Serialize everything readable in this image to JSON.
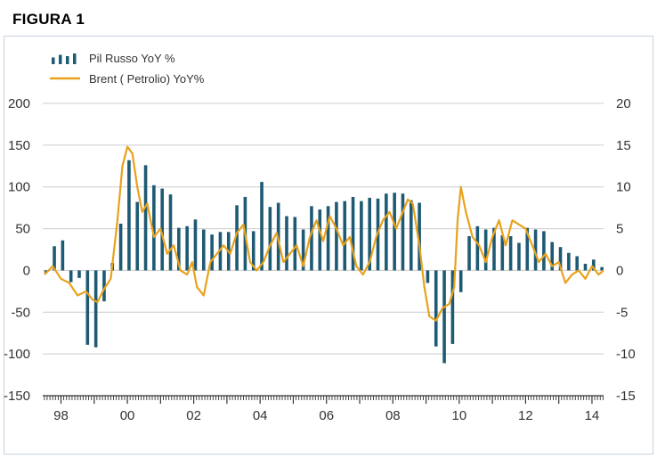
{
  "figure_label": "FIGURA 1",
  "chart_data": {
    "type": "bar",
    "title": "",
    "legend_placement": "top-left",
    "grid": true,
    "colors": {
      "bars": "#1e5a74",
      "line": "#e8a21c",
      "grid": "#cccccc",
      "axis": "#333333"
    },
    "x_axis": {
      "range": [
        1997.45,
        2014.35
      ],
      "tick_labels": [
        "98",
        "00",
        "02",
        "04",
        "06",
        "08",
        "10",
        "12",
        "14"
      ],
      "tick_positions": [
        1998,
        2000,
        2002,
        2004,
        2006,
        2008,
        2010,
        2012,
        2014
      ]
    },
    "y_left": {
      "range": [
        -150,
        200
      ],
      "ticks": [
        200,
        150,
        100,
        50,
        0,
        -50,
        -100,
        -150
      ],
      "tick_labels": [
        "200",
        "150",
        "100",
        "50",
        "0",
        "-50",
        "-100",
        "-150"
      ]
    },
    "y_right": {
      "range": [
        -15,
        20
      ],
      "ticks": [
        20,
        15,
        10,
        5,
        0,
        -5,
        -10,
        -15
      ],
      "tick_labels": [
        "20",
        "15",
        "10",
        "5",
        "0",
        "-5",
        "-10",
        "-15"
      ]
    },
    "series": [
      {
        "name": "Pil Russo YoY %",
        "type": "bar",
        "axis": "right",
        "x": [
          1997.55,
          1997.8,
          1998.05,
          1998.3,
          1998.55,
          1998.8,
          1999.05,
          1999.3,
          1999.55,
          1999.8,
          2000.05,
          2000.3,
          2000.55,
          2000.8,
          2001.05,
          2001.3,
          2001.55,
          2001.8,
          2002.05,
          2002.3,
          2002.55,
          2002.8,
          2003.05,
          2003.3,
          2003.55,
          2003.8,
          2004.05,
          2004.3,
          2004.55,
          2004.8,
          2005.05,
          2005.3,
          2005.55,
          2005.8,
          2006.05,
          2006.3,
          2006.55,
          2006.8,
          2007.05,
          2007.3,
          2007.55,
          2007.8,
          2008.05,
          2008.3,
          2008.55,
          2008.8,
          2009.05,
          2009.3,
          2009.55,
          2009.8,
          2010.05,
          2010.3,
          2010.55,
          2010.8,
          2011.05,
          2011.3,
          2011.55,
          2011.8,
          2012.05,
          2012.3,
          2012.55,
          2012.8,
          2013.05,
          2013.3,
          2013.55,
          2013.8,
          2014.05,
          2014.3
        ],
        "values": [
          -0.3,
          2.9,
          3.6,
          -1.4,
          -0.9,
          -8.9,
          -9.2,
          -3.7,
          0.9,
          5.6,
          13.2,
          8.2,
          12.6,
          10.2,
          9.8,
          9.1,
          5.1,
          5.3,
          6.1,
          4.9,
          4.3,
          4.6,
          4.6,
          7.8,
          8.8,
          4.7,
          10.6,
          7.6,
          8.1,
          6.5,
          6.4,
          4.9,
          7.7,
          7.3,
          7.7,
          8.2,
          8.3,
          8.8,
          8.3,
          8.7,
          8.6,
          9.2,
          9.3,
          9.2,
          8.4,
          8.1,
          -1.5,
          -9.1,
          -11.1,
          -8.8,
          -2.6,
          4.1,
          5.3,
          4.9,
          5.1,
          4.2,
          4.1,
          3.3,
          5.1,
          4.9,
          4.7,
          3.4,
          2.8,
          2.1,
          1.7,
          0.8,
          1.3,
          0.4
        ]
      },
      {
        "name": "Brent ( Petrolio) YoY%",
        "type": "line",
        "axis": "left",
        "x": [
          1997.5,
          1997.75,
          1998.0,
          1998.25,
          1998.5,
          1998.75,
          1998.95,
          1999.1,
          1999.3,
          1999.5,
          1999.7,
          1999.85,
          2000.0,
          2000.15,
          2000.3,
          2000.45,
          2000.6,
          2000.8,
          2001.0,
          2001.2,
          2001.4,
          2001.6,
          2001.8,
          2001.95,
          2002.1,
          2002.3,
          2002.5,
          2002.7,
          2002.9,
          2003.1,
          2003.3,
          2003.5,
          2003.7,
          2003.9,
          2004.1,
          2004.3,
          2004.5,
          2004.7,
          2004.9,
          2005.1,
          2005.3,
          2005.5,
          2005.7,
          2005.9,
          2006.1,
          2006.3,
          2006.5,
          2006.7,
          2006.9,
          2007.1,
          2007.3,
          2007.5,
          2007.7,
          2007.9,
          2008.1,
          2008.3,
          2008.45,
          2008.6,
          2008.8,
          2008.95,
          2009.1,
          2009.3,
          2009.5,
          2009.7,
          2009.85,
          2009.95,
          2010.05,
          2010.2,
          2010.4,
          2010.6,
          2010.8,
          2011.0,
          2011.2,
          2011.4,
          2011.6,
          2011.8,
          2012.0,
          2012.2,
          2012.4,
          2012.6,
          2012.8,
          2013.0,
          2013.2,
          2013.4,
          2013.6,
          2013.8,
          2014.0,
          2014.2,
          2014.35
        ],
        "values": [
          -5,
          5,
          -10,
          -15,
          -30,
          -25,
          -35,
          -38,
          -22,
          -10,
          60,
          125,
          148,
          140,
          100,
          70,
          80,
          40,
          50,
          20,
          30,
          0,
          -5,
          10,
          -20,
          -30,
          10,
          20,
          30,
          20,
          45,
          55,
          10,
          0,
          10,
          30,
          45,
          10,
          20,
          30,
          5,
          40,
          60,
          35,
          65,
          50,
          30,
          40,
          5,
          -5,
          10,
          40,
          60,
          70,
          50,
          70,
          85,
          80,
          30,
          -20,
          -55,
          -60,
          -45,
          -40,
          -20,
          60,
          100,
          70,
          40,
          30,
          10,
          40,
          60,
          30,
          60,
          55,
          50,
          30,
          10,
          20,
          5,
          10,
          -15,
          -5,
          0,
          -10,
          5,
          -5,
          0
        ]
      }
    ]
  }
}
